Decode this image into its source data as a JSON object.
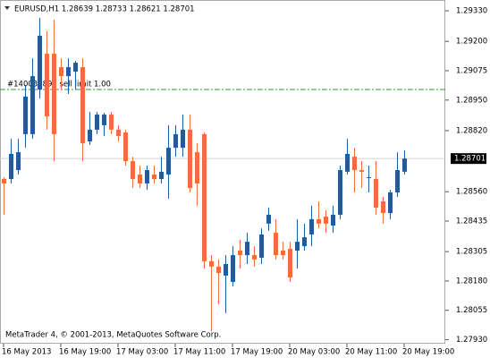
{
  "chart_data": {
    "type": "candlestick",
    "header": "EURUSD,H1  1.28639 1.28733 1.28621 1.28701",
    "footer": "MetaTrader 4, © 2001-2013, MetaQuotes Software Corp.",
    "bull_color": "#1f5c99",
    "bear_color": "#f26b43",
    "categories": [
      "16 May 2013",
      null,
      null,
      null,
      null,
      null,
      null,
      null,
      "16 May 19:00",
      null,
      null,
      null,
      null,
      null,
      null,
      null,
      "17 May 03:00",
      null,
      null,
      null,
      null,
      null,
      null,
      null,
      "17 May 11:00",
      null,
      null,
      null,
      null,
      null,
      null,
      null,
      "17 May 19:00",
      null,
      null,
      null,
      null,
      null,
      null,
      null,
      "20 May 03:00",
      null,
      null,
      null,
      null,
      null,
      null,
      null,
      "20 May 11:00",
      null,
      null,
      null,
      null,
      null,
      null,
      null,
      "20 May 19:00"
    ],
    "open": [
      1.28614,
      1.28614,
      1.28652,
      1.28805,
      1.28805,
      1.28995,
      1.29147,
      1.29147,
      1.2909,
      1.29052,
      1.29071,
      1.2909,
      1.28774,
      1.28824,
      1.28843,
      1.28888,
      1.28824,
      1.28812,
      1.2869,
      1.28633,
      1.28595,
      1.28633,
      1.28614,
      1.28633,
      1.28747,
      1.28747,
      1.28824,
      1.28728,
      1.28805,
      1.28264,
      1.28241,
      1.28203,
      1.28176,
      1.28309,
      1.2829,
      1.2829,
      1.28279,
      1.28424,
      1.28385,
      1.28309,
      1.28317,
      1.28309,
      1.28328,
      1.28378,
      1.28443,
      1.28454,
      1.28416,
      1.28462,
      1.28645,
      1.28709,
      1.28652,
      1.28622,
      1.28614,
      1.28519,
      1.28469,
      1.28557,
      1.28645
    ],
    "high": [
      1.28622,
      1.28785,
      1.28785,
      1.29014,
      1.29128,
      1.293,
      1.29243,
      1.29292,
      1.29128,
      1.29128,
      1.29117,
      1.29128,
      1.289,
      1.289,
      1.28896,
      1.289,
      1.28843,
      1.28824,
      1.28709,
      1.28671,
      1.28671,
      1.28671,
      1.28709,
      1.28843,
      1.28843,
      1.28888,
      1.28888,
      1.28766,
      1.28812,
      1.2829,
      1.28271,
      1.2829,
      1.28328,
      1.28355,
      1.28385,
      1.28328,
      1.28404,
      1.28492,
      1.28443,
      1.28347,
      1.28347,
      1.28443,
      1.28424,
      1.285,
      1.28519,
      1.28481,
      1.285,
      1.28671,
      1.28785,
      1.28747,
      1.2869,
      1.28671,
      1.2869,
      1.28538,
      1.28568,
      1.28728,
      1.28736
    ],
    "low": [
      1.28462,
      1.28595,
      1.28633,
      1.28747,
      1.28785,
      1.28957,
      1.28824,
      1.2869,
      1.28995,
      1.28976,
      1.28995,
      1.2869,
      1.28759,
      1.28805,
      1.28797,
      1.28805,
      1.28774,
      1.28671,
      1.28576,
      1.28576,
      1.28568,
      1.28595,
      1.28595,
      1.2853,
      1.28709,
      1.28709,
      1.28557,
      1.285,
      1.28233,
      1.27966,
      1.28081,
      1.28043,
      1.28157,
      1.28233,
      1.28252,
      1.28241,
      1.28252,
      1.28393,
      1.28271,
      1.28271,
      1.28176,
      1.28233,
      1.28309,
      1.28328,
      1.28404,
      1.28385,
      1.28385,
      1.28443,
      1.28633,
      1.28557,
      1.28576,
      1.28557,
      1.28462,
      1.28424,
      1.28443,
      1.28538,
      1.28633
    ],
    "close": [
      1.28595,
      1.28721,
      1.28728,
      1.28965,
      1.29052,
      1.29224,
      1.28881,
      1.28805,
      1.29052,
      1.2909,
      1.29109,
      1.28766,
      1.28824,
      1.28888,
      1.28888,
      1.28824,
      1.28797,
      1.2869,
      1.28614,
      1.28595,
      1.28652,
      1.28614,
      1.28645,
      1.28747,
      1.28805,
      1.28824,
      1.28576,
      1.28595,
      1.28264,
      1.28241,
      1.28214,
      1.28252,
      1.2829,
      1.2829,
      1.28347,
      1.28271,
      1.28378,
      1.28462,
      1.2829,
      1.2829,
      1.28195,
      1.28347,
      1.28366,
      1.28443,
      1.28424,
      1.28424,
      1.28462,
      1.28652,
      1.28721,
      1.28652,
      1.28645,
      1.28622,
      1.28492,
      1.28469,
      1.28557,
      1.28652,
      1.28701
    ],
    "ylim": [
      1.27913,
      1.29376
    ],
    "yticks": [
      {
        "value": 1.2933,
        "label": "1.29330"
      },
      {
        "value": 1.292,
        "label": "1.29200"
      },
      {
        "value": 1.29075,
        "label": "1.29075"
      },
      {
        "value": 1.2895,
        "label": "1.28950"
      },
      {
        "value": 1.2882,
        "label": "1.28820"
      },
      {
        "value": 1.2856,
        "label": "1.28560"
      },
      {
        "value": 1.28435,
        "label": "1.28435"
      },
      {
        "value": 1.28305,
        "label": "1.28305"
      },
      {
        "value": 1.2818,
        "label": "1.28180"
      },
      {
        "value": 1.28055,
        "label": "1.28055"
      },
      {
        "value": 1.2793,
        "label": "1.27930"
      }
    ],
    "current_price": 1.28701,
    "order": {
      "label": "#140036897 sell limit 1.00",
      "value": 1.28995,
      "color": "#2e9e2e"
    }
  }
}
